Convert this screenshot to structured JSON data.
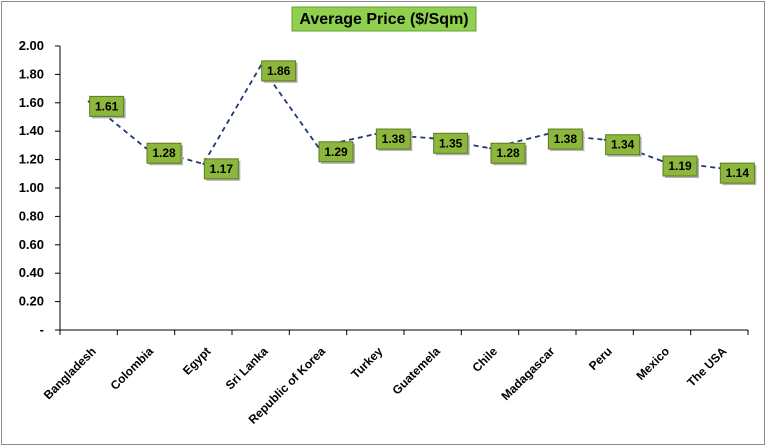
{
  "chart_data": {
    "type": "line",
    "title": "Average Price ($/Sqm)",
    "categories": [
      "Bangladesh",
      "Colombia",
      "Egypt",
      "Sri Lanka",
      "Republic of Korea",
      "Turkey",
      "Guatemela",
      "Chile",
      "Madagascar",
      "Peru",
      "Mexico",
      "The USA"
    ],
    "series": [
      {
        "values": [
          1.61,
          1.28,
          1.17,
          1.86,
          1.29,
          1.38,
          1.35,
          1.28,
          1.38,
          1.34,
          1.19,
          1.14
        ]
      }
    ],
    "data_labels": [
      "1.61",
      "1.28",
      "1.17",
      "1.86",
      "1.29",
      "1.38",
      "1.35",
      "1.28",
      "1.38",
      "1.34",
      "1.19",
      "1.14"
    ],
    "ylim": [
      0,
      2
    ],
    "yticks": [
      0,
      0.2,
      0.4,
      0.6,
      0.8,
      1.0,
      1.2,
      1.4,
      1.6,
      1.8,
      2.0
    ],
    "ytick_labels": [
      "-",
      "0.20",
      "0.40",
      "0.60",
      "0.80",
      "1.00",
      "1.20",
      "1.40",
      "1.60",
      "1.80",
      "2.00"
    ],
    "xlabel": "",
    "ylabel": "",
    "grid": false,
    "legend": "none",
    "colors": {
      "line": "#1f3a6e",
      "label_fill": "#8db63c",
      "title_fill": "#8fd14f"
    }
  }
}
